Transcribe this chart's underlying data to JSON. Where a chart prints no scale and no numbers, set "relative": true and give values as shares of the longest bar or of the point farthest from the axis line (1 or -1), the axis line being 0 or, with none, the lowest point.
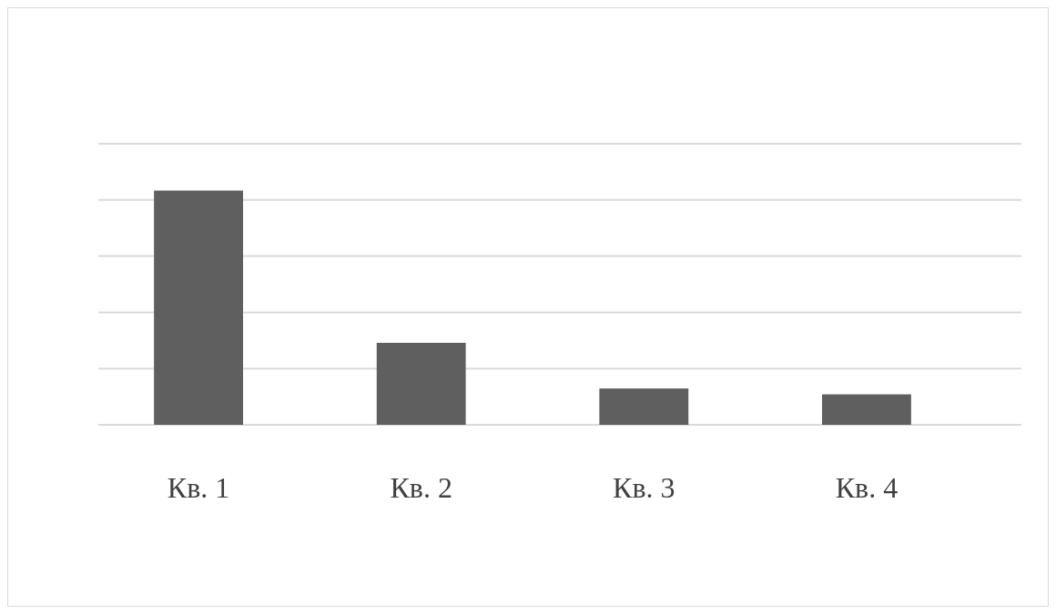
{
  "chart_data": {
    "type": "bar",
    "relative": true,
    "categories": [
      "Кв. 1",
      "Кв. 2",
      "Кв. 3",
      "Кв. 4"
    ],
    "values": [
      1,
      0.35,
      0.155,
      0.13
    ],
    "color": "#5f5f5f",
    "grid": true
  }
}
